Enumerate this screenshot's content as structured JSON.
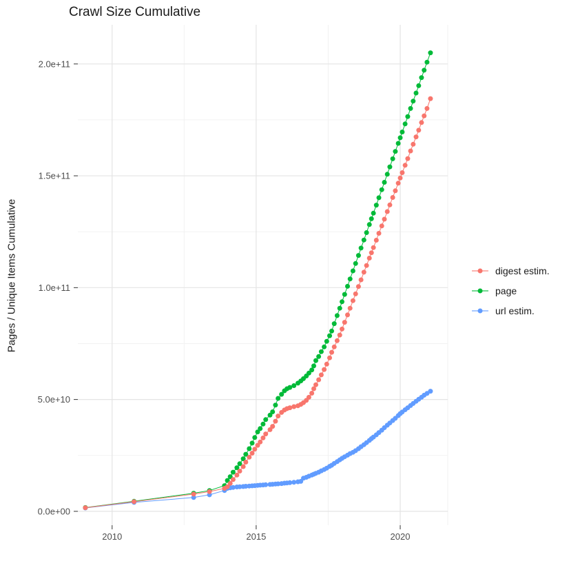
{
  "chart_data": {
    "type": "scatter",
    "title": "Crawl Size Cumulative",
    "xlabel": "",
    "ylabel": "Pages / Unique Items Cumulative",
    "legend_position": "right",
    "grid": true,
    "axis": {
      "xlim": [
        2008.81,
        2021.65
      ],
      "ylim": [
        -6200000000.0,
        217500000000.0
      ],
      "x_breaks": [
        2010,
        2015,
        2020
      ],
      "x_break_labels": [
        "2010",
        "2015",
        "2020"
      ],
      "x_minor": [
        2012.5,
        2017.5,
        2021.65
      ],
      "y_breaks": [
        0,
        50000000000.0,
        100000000000.0,
        150000000000.0,
        200000000000.0
      ],
      "y_break_labels": [
        "0.0e+00",
        "5.0e+10",
        "1.0e+11",
        "1.5e+11",
        "2.0e+11"
      ],
      "y_minor": [
        25000000000.0,
        75000000000.0,
        125000000000.0,
        175000000000.0
      ]
    },
    "colors": {
      "grid_major": "#e4e4e4",
      "grid_minor": "#f2f2f2",
      "axis_text": "#4d4d4d",
      "tick": "#333333"
    },
    "x": [
      2009.07,
      2010.76,
      2012.83,
      2013.38,
      2013.9,
      2014.0,
      2014.1,
      2014.2,
      2014.33,
      2014.43,
      2014.55,
      2014.64,
      2014.76,
      2014.86,
      2014.95,
      2015.05,
      2015.14,
      2015.24,
      2015.33,
      2015.48,
      2015.57,
      2015.67,
      2015.76,
      2015.88,
      2015.98,
      2016.07,
      2016.17,
      2016.31,
      2016.45,
      2016.55,
      2016.64,
      2016.74,
      2016.83,
      2016.93,
      2017.0,
      2017.07,
      2017.17,
      2017.26,
      2017.36,
      2017.45,
      2017.55,
      2017.62,
      2017.71,
      2017.81,
      2017.9,
      2017.98,
      2018.07,
      2018.17,
      2018.26,
      2018.36,
      2018.45,
      2018.55,
      2018.64,
      2018.74,
      2018.83,
      2018.93,
      2019.0,
      2019.07,
      2019.17,
      2019.26,
      2019.36,
      2019.45,
      2019.55,
      2019.64,
      2019.74,
      2019.83,
      2019.93,
      2020.0,
      2020.07,
      2020.17,
      2020.26,
      2020.36,
      2020.45,
      2020.55,
      2020.64,
      2020.74,
      2020.83,
      2020.93,
      2021.05
    ],
    "series": [
      {
        "name": "digest estim.",
        "color": "#F8766D",
        "values": [
          1600000000.0,
          4300000000.0,
          7700000000.0,
          8800000000.0,
          10300000000.0,
          11000000000.0,
          12500000000.0,
          14200000000.0,
          16200000000.0,
          18000000000.0,
          20000000000.0,
          22000000000.0,
          24200000000.0,
          26000000000.0,
          27800000000.0,
          29500000000.0,
          31000000000.0,
          32800000000.0,
          34600000000.0,
          36500000000.0,
          38000000000.0,
          40300000000.0,
          42600000000.0,
          44200000000.0,
          45300000000.0,
          45900000000.0,
          46300000000.0,
          46800000000.0,
          47200000000.0,
          47800000000.0,
          48600000000.0,
          49600000000.0,
          51000000000.0,
          52800000000.0,
          54800000000.0,
          56600000000.0,
          58800000000.0,
          61000000000.0,
          63400000000.0,
          65800000000.0,
          68600000000.0,
          71100000000.0,
          73500000000.0,
          76300000000.0,
          78800000000.0,
          81500000000.0,
          84500000000.0,
          87800000000.0,
          90800000000.0,
          94200000000.0,
          97200000000.0,
          100500000000.0,
          103500000000.0,
          106900000000.0,
          109900000000.0,
          113200000000.0,
          115600000000.0,
          117900000000.0,
          121200000000.0,
          124300000000.0,
          127600000000.0,
          130600000000.0,
          134000000000.0,
          137000000000.0,
          140300000000.0,
          143300000000.0,
          146700000000.0,
          149000000000.0,
          151400000000.0,
          154700000000.0,
          157700000000.0,
          161100000000.0,
          164100000000.0,
          167400000000.0,
          170400000000.0,
          173800000000.0,
          176800000000.0,
          180100000000.0,
          184500000000.0
        ]
      },
      {
        "name": "page",
        "color": "#00BA38",
        "values": [
          1700000000.0,
          4500000000.0,
          8100000000.0,
          9300000000.0,
          11500000000.0,
          13800000000.0,
          15500000000.0,
          17500000000.0,
          19500000000.0,
          21300000000.0,
          23500000000.0,
          25500000000.0,
          28000000000.0,
          30500000000.0,
          33000000000.0,
          35500000000.0,
          37000000000.0,
          39000000000.0,
          41000000000.0,
          43000000000.0,
          44500000000.0,
          47500000000.0,
          50500000000.0,
          52300000000.0,
          53900000000.0,
          54800000000.0,
          55400000000.0,
          56200000000.0,
          57300000000.0,
          58300000000.0,
          59300000000.0,
          60500000000.0,
          61800000000.0,
          63200000000.0,
          65000000000.0,
          67400000000.0,
          69200000000.0,
          71400000000.0,
          73500000000.0,
          76000000000.0,
          78500000000.0,
          80600000000.0,
          83900000000.0,
          87500000000.0,
          90800000000.0,
          93700000000.0,
          97000000000.0,
          100600000000.0,
          103900000000.0,
          107500000000.0,
          110800000000.0,
          114400000000.0,
          117700000000.0,
          121300000000.0,
          124600000000.0,
          128200000000.0,
          130800000000.0,
          133300000000.0,
          136900000000.0,
          140200000000.0,
          143800000000.0,
          147100000000.0,
          150700000000.0,
          154000000000.0,
          157600000000.0,
          160900000000.0,
          164500000000.0,
          167000000000.0,
          169600000000.0,
          173200000000.0,
          176500000000.0,
          180100000000.0,
          183400000000.0,
          187000000000.0,
          190300000000.0,
          193900000000.0,
          197200000000.0,
          200800000000.0,
          205000000000.0
        ]
      },
      {
        "name": "url estim.",
        "color": "#619CFF",
        "values": [
          1500000000.0,
          4000000000.0,
          6200000000.0,
          7400000000.0,
          9300000000.0,
          10300000000.0,
          10500000000.0,
          10700000000.0,
          10900000000.0,
          11000000000.0,
          11100000000.0,
          11200000000.0,
          11300000000.0,
          11400000000.0,
          11500000000.0,
          11600000000.0,
          11700000000.0,
          11800000000.0,
          11900000000.0,
          12000000000.0,
          12100000000.0,
          12200000000.0,
          12300000000.0,
          12400000000.0,
          12600000000.0,
          12700000000.0,
          12800000000.0,
          13000000000.0,
          13200000000.0,
          13400000000.0,
          14800000000.0,
          15200000000.0,
          15700000000.0,
          16200000000.0,
          16600000000.0,
          17000000000.0,
          17500000000.0,
          18100000000.0,
          18700000000.0,
          19300000000.0,
          20100000000.0,
          20600000000.0,
          21400000000.0,
          22200000000.0,
          23000000000.0,
          23700000000.0,
          24400000000.0,
          25100000000.0,
          25800000000.0,
          26400000000.0,
          27100000000.0,
          28000000000.0,
          28900000000.0,
          29800000000.0,
          30700000000.0,
          31700000000.0,
          32500000000.0,
          33200000000.0,
          34200000000.0,
          35200000000.0,
          36300000000.0,
          37400000000.0,
          38500000000.0,
          39500000000.0,
          40600000000.0,
          41600000000.0,
          42800000000.0,
          43700000000.0,
          44400000000.0,
          45400000000.0,
          46300000000.0,
          47300000000.0,
          48200000000.0,
          49200000000.0,
          50100000000.0,
          51000000000.0,
          51900000000.0,
          52700000000.0,
          53700000000.0
        ]
      }
    ],
    "draw_order": [
      2,
      1,
      0
    ]
  }
}
